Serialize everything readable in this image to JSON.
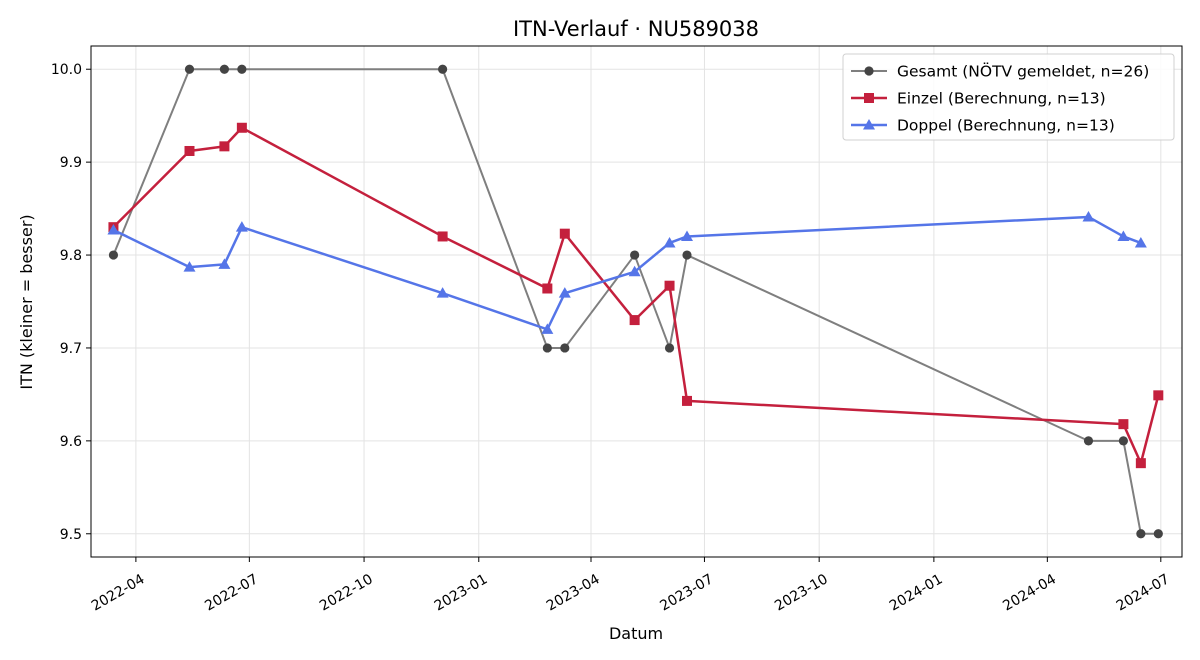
{
  "chart_data": {
    "type": "line",
    "title": "ITN-Verlauf · NU589038",
    "xlabel": "Datum",
    "ylabel": "ITN  (kleiner = besser)",
    "x_type": "date",
    "xlim": [
      "2022-02-24",
      "2024-07-18"
    ],
    "ylim": [
      9.475,
      10.025
    ],
    "x_ticks": [
      "2022-04-01",
      "2022-07-01",
      "2022-10-01",
      "2023-01-01",
      "2023-04-01",
      "2023-07-01",
      "2023-10-01",
      "2024-01-01",
      "2024-04-01",
      "2024-07-01"
    ],
    "x_tick_labels": [
      "2022-04",
      "2022-07",
      "2022-10",
      "2023-01",
      "2023-04",
      "2023-07",
      "2023-10",
      "2024-01",
      "2024-04",
      "2024-07"
    ],
    "y_ticks": [
      9.5,
      9.6,
      9.7,
      9.8,
      9.9,
      10.0
    ],
    "y_tick_labels": [
      "9.5",
      "9.6",
      "9.7",
      "9.8",
      "9.9",
      "10.0"
    ],
    "grid": true,
    "legend_position": "top-right",
    "series": [
      {
        "name": "Gesamt (NÖTV gemeldet, n=26)",
        "color": "#7f7f7f",
        "marker_color": "#444444",
        "marker": "circle",
        "x": [
          "2022-03-14",
          "2022-05-14",
          "2022-06-11",
          "2022-06-25",
          "2022-12-03",
          "2023-02-25",
          "2023-03-11",
          "2023-05-06",
          "2023-06-03",
          "2023-06-17",
          "2024-05-04",
          "2024-06-01",
          "2024-06-15",
          "2024-06-29"
        ],
        "y": [
          9.8,
          10.0,
          10.0,
          10.0,
          10.0,
          9.7,
          9.7,
          9.8,
          9.7,
          9.8,
          9.6,
          9.6,
          9.5,
          9.5
        ]
      },
      {
        "name": "Einzel (Berechnung, n=13)",
        "color": "#c4203d",
        "marker": "square",
        "x": [
          "2022-03-14",
          "2022-05-14",
          "2022-06-11",
          "2022-06-25",
          "2022-12-03",
          "2023-02-25",
          "2023-03-11",
          "2023-05-06",
          "2023-06-03",
          "2023-06-17",
          "2024-06-01",
          "2024-06-15",
          "2024-06-29"
        ],
        "y": [
          9.83,
          9.912,
          9.917,
          9.937,
          9.82,
          9.764,
          9.823,
          9.73,
          9.767,
          9.643,
          9.618,
          9.576,
          9.649
        ]
      },
      {
        "name": "Doppel (Berechnung, n=13)",
        "color": "#5575e8",
        "marker": "triangle",
        "x": [
          "2022-03-14",
          "2022-05-14",
          "2022-06-11",
          "2022-06-25",
          "2022-12-03",
          "2023-02-25",
          "2023-03-11",
          "2023-05-06",
          "2023-06-03",
          "2023-06-17",
          "2024-05-04",
          "2024-06-01",
          "2024-06-15"
        ],
        "y": [
          9.827,
          9.787,
          9.79,
          9.83,
          9.759,
          9.72,
          9.759,
          9.782,
          9.813,
          9.82,
          9.841,
          9.82,
          9.813
        ]
      }
    ]
  }
}
